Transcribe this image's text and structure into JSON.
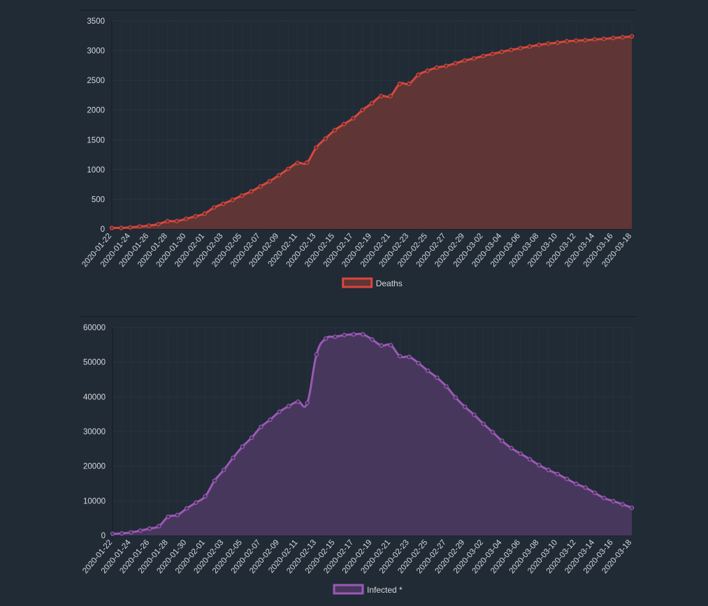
{
  "chart_data": [
    {
      "type": "area",
      "legend": {
        "label": "Deaths",
        "position": "bottom"
      },
      "colors": {
        "line": "#d9473a",
        "fill": "#5f3536"
      },
      "grid": true,
      "ylim": [
        0,
        3500
      ],
      "yticks": [
        0,
        500,
        1000,
        1500,
        2000,
        2500,
        3000,
        3500
      ],
      "x_start": "2020-01-22",
      "x_end": "2020-03-18",
      "x_tick_labels": [
        "2020-01-22",
        "2020-01-24",
        "2020-01-26",
        "2020-01-28",
        "2020-01-30",
        "2020-02-01",
        "2020-02-03",
        "2020-02-05",
        "2020-02-07",
        "2020-02-09",
        "2020-02-11",
        "2020-02-13",
        "2020-02-15",
        "2020-02-17",
        "2020-02-19",
        "2020-02-21",
        "2020-02-23",
        "2020-02-25",
        "2020-02-27",
        "2020-02-29",
        "2020-03-02",
        "2020-03-04",
        "2020-03-06",
        "2020-03-08",
        "2020-03-10",
        "2020-03-12",
        "2020-03-14",
        "2020-03-16",
        "2020-03-18"
      ],
      "series": [
        {
          "name": "Deaths",
          "values": [
            17,
            18,
            26,
            42,
            56,
            82,
            131,
            133,
            171,
            213,
            259,
            361,
            425,
            490,
            562,
            632,
            717,
            804,
            904,
            1011,
            1111,
            1116,
            1368,
            1520,
            1662,
            1765,
            1863,
            2002,
            2114,
            2236,
            2236,
            2442,
            2443,
            2593,
            2663,
            2715,
            2744,
            2788,
            2835,
            2870,
            2911,
            2945,
            2981,
            3013,
            3042,
            3070,
            3097,
            3119,
            3136,
            3158,
            3169,
            3176,
            3189,
            3199,
            3213,
            3226,
            3240
          ]
        }
      ]
    },
    {
      "type": "area",
      "legend": {
        "label": "Infected *",
        "position": "bottom"
      },
      "colors": {
        "line": "#9b59b6",
        "fill": "#48375d"
      },
      "grid": true,
      "ylim": [
        0,
        60000
      ],
      "yticks": [
        0,
        10000,
        20000,
        30000,
        40000,
        50000,
        60000
      ],
      "x_start": "2020-01-22",
      "x_end": "2020-03-18",
      "x_tick_labels": [
        "2020-01-22",
        "2020-01-24",
        "2020-01-26",
        "2020-01-28",
        "2020-01-30",
        "2020-02-01",
        "2020-02-03",
        "2020-02-05",
        "2020-02-07",
        "2020-02-09",
        "2020-02-11",
        "2020-02-13",
        "2020-02-15",
        "2020-02-17",
        "2020-02-19",
        "2020-02-21",
        "2020-02-23",
        "2020-02-25",
        "2020-02-27",
        "2020-02-29",
        "2020-03-02",
        "2020-03-04",
        "2020-03-06",
        "2020-03-08",
        "2020-03-10",
        "2020-03-12",
        "2020-03-14",
        "2020-03-16",
        "2020-03-18"
      ],
      "series": [
        {
          "name": "Infected *",
          "values": [
            500,
            600,
            900,
            1400,
            2000,
            2700,
            5400,
            5900,
            7800,
            9500,
            11300,
            15800,
            18900,
            22400,
            25600,
            28200,
            31300,
            33400,
            35700,
            37300,
            38600,
            38200,
            52200,
            56800,
            57300,
            57800,
            58000,
            58000,
            56500,
            54800,
            54900,
            51700,
            51500,
            49700,
            47500,
            45500,
            43000,
            39800,
            37100,
            34800,
            32200,
            29800,
            27300,
            25200,
            23600,
            22000,
            20300,
            18900,
            17700,
            16300,
            14900,
            13800,
            12300,
            10800,
            9900,
            9000,
            8000
          ]
        }
      ]
    }
  ]
}
